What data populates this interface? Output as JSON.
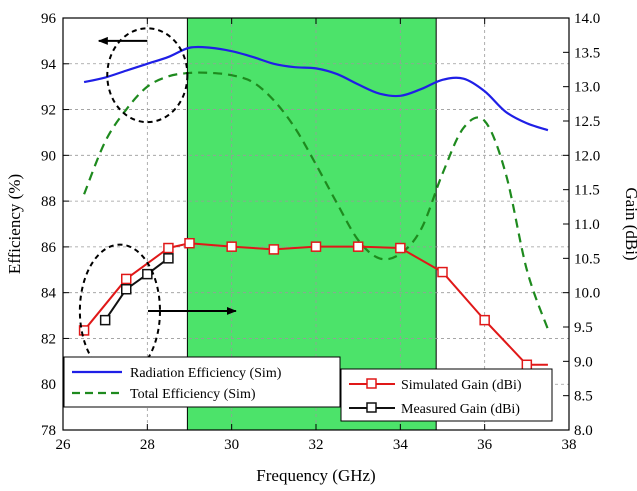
{
  "chart_data": {
    "type": "line",
    "xlabel": "Frequency (GHz)",
    "ylabel": "Efficiency (%)",
    "y2label": "Gain (dBi)",
    "xlim": [
      26,
      38
    ],
    "ylim": [
      78,
      96
    ],
    "y2lim": [
      8.0,
      14.0
    ],
    "x_ticks": [
      26,
      28,
      30,
      32,
      34,
      36,
      38
    ],
    "y_ticks": [
      78,
      80,
      82,
      84,
      86,
      88,
      90,
      92,
      94,
      96
    ],
    "y2_ticks": [
      "8.0",
      "8.5",
      "9.0",
      "9.5",
      "10.0",
      "10.5",
      "11.0",
      "11.5",
      "12.0",
      "12.5",
      "13.0",
      "13.5",
      "14.0"
    ],
    "grid": true,
    "highlight_band": {
      "x_start": 28.95,
      "x_end": 34.85,
      "color": "#4ce36a"
    },
    "series": [
      {
        "name": "Radiation Efficiency (Sim)",
        "axis": "left",
        "color": "#1f1fe6",
        "style": "solid",
        "x": [
          26.5,
          27.0,
          27.5,
          28.0,
          28.5,
          29.0,
          29.5,
          30.0,
          30.5,
          31.0,
          31.5,
          32.0,
          32.5,
          33.0,
          33.5,
          34.0,
          34.5,
          35.0,
          35.5,
          36.0,
          36.5,
          37.0,
          37.5
        ],
        "values": [
          93.2,
          93.4,
          93.7,
          94.0,
          94.3,
          94.7,
          94.7,
          94.55,
          94.3,
          94.0,
          93.85,
          93.8,
          93.55,
          93.1,
          92.7,
          92.6,
          92.9,
          93.3,
          93.35,
          92.8,
          91.9,
          91.4,
          91.1
        ]
      },
      {
        "name": "Total Efficiency (Sim)",
        "axis": "left",
        "color": "#1e8a1e",
        "style": "dashed",
        "x": [
          26.5,
          27.0,
          27.5,
          28.0,
          28.5,
          29.0,
          29.5,
          30.0,
          30.5,
          31.0,
          31.5,
          32.0,
          32.5,
          33.0,
          33.5,
          34.0,
          34.5,
          35.0,
          35.5,
          36.0,
          36.5,
          37.0,
          37.5
        ],
        "values": [
          88.3,
          90.6,
          92.0,
          93.0,
          93.45,
          93.6,
          93.6,
          93.5,
          93.2,
          92.4,
          91.2,
          89.6,
          87.9,
          86.3,
          85.5,
          85.7,
          86.8,
          89.2,
          91.2,
          91.5,
          89.2,
          85.0,
          82.4
        ]
      },
      {
        "name": "Simulated Gain (dBi)",
        "axis": "right",
        "color": "#e01818",
        "style": "solid",
        "marker": "square",
        "x": [
          26.5,
          27.5,
          28.5,
          29.0,
          30.0,
          31.0,
          32.0,
          33.0,
          34.0,
          35.0,
          36.0,
          37.0,
          37.5
        ],
        "values": [
          9.45,
          10.2,
          10.65,
          10.72,
          10.67,
          10.63,
          10.67,
          10.67,
          10.65,
          10.3,
          9.6,
          8.95,
          8.95
        ],
        "marker_x": [
          26.5,
          27.5,
          28.5,
          29.0,
          30.0,
          31.0,
          32.0,
          33.0,
          34.0,
          35.0,
          36.0,
          37.0
        ]
      },
      {
        "name": "Measured Gain (dBi)",
        "axis": "right",
        "color": "#111111",
        "style": "solid",
        "marker": "square",
        "x": [
          27.0,
          27.5,
          28.0,
          28.5
        ],
        "values": [
          9.6,
          10.05,
          10.27,
          10.5
        ]
      }
    ],
    "annotations": [
      {
        "kind": "ellipse",
        "cx": 28.0,
        "cy": 93.5,
        "rx": 0.95,
        "ry": 2.05,
        "axis": "left",
        "arrow_to_x": 26.85,
        "arrow_y": 95.0
      },
      {
        "kind": "ellipse",
        "cx": 27.35,
        "cy": 83.2,
        "rx": 0.95,
        "ry": 2.9,
        "axis": "left",
        "arrow_to_x": 30.1,
        "arrow_y": 83.2
      }
    ]
  }
}
